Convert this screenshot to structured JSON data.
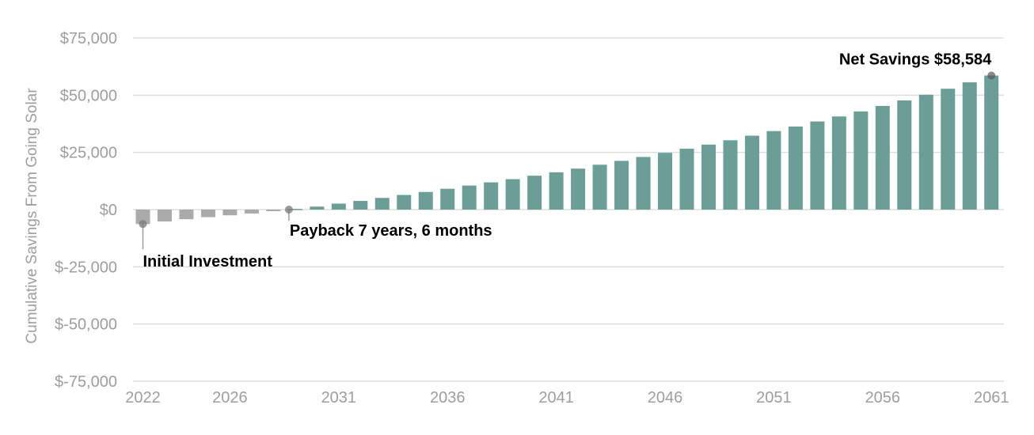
{
  "chart_data": {
    "type": "bar",
    "ylabel": "Cumulative Savings From Going Solar",
    "ylim": [
      -75000,
      75000
    ],
    "yticks": [
      {
        "value": 75000,
        "label": "$75,000"
      },
      {
        "value": 50000,
        "label": "$50,000"
      },
      {
        "value": 25000,
        "label": "$25,000"
      },
      {
        "value": 0,
        "label": "$0"
      },
      {
        "value": -25000,
        "label": "$-25,000"
      },
      {
        "value": -50000,
        "label": "$-50,000"
      },
      {
        "value": -75000,
        "label": "$-75,000"
      }
    ],
    "xticks": [
      "2022",
      "2026",
      "2031",
      "2036",
      "2041",
      "2046",
      "2051",
      "2056",
      "2061"
    ],
    "xtick_years": [
      2022,
      2026,
      2031,
      2036,
      2041,
      2046,
      2051,
      2056,
      2061
    ],
    "x": [
      2022,
      2023,
      2024,
      2025,
      2026,
      2027,
      2028,
      2029,
      2030,
      2031,
      2032,
      2033,
      2034,
      2035,
      2036,
      2037,
      2038,
      2039,
      2040,
      2041,
      2042,
      2043,
      2044,
      2045,
      2046,
      2047,
      2048,
      2049,
      2050,
      2051,
      2052,
      2053,
      2054,
      2055,
      2056,
      2057,
      2058,
      2059,
      2060,
      2061
    ],
    "values": [
      -6300,
      -5200,
      -4200,
      -3300,
      -2500,
      -1700,
      -700,
      300,
      1300,
      2600,
      3800,
      5100,
      6400,
      7700,
      9100,
      10500,
      11900,
      13300,
      14800,
      16300,
      17900,
      19600,
      21300,
      23000,
      24800,
      26600,
      28400,
      30300,
      32300,
      34300,
      36300,
      38500,
      40700,
      42900,
      45300,
      47700,
      50200,
      52800,
      55600,
      58584
    ],
    "negative_color": "#aaaaaa",
    "positive_color": "#6a9e96",
    "grid": true,
    "annotations": [
      {
        "text": "Initial Investment",
        "year": 2022,
        "value": -6300
      },
      {
        "text": "Payback 7 years, 6 months",
        "year": 2029,
        "value": 0
      },
      {
        "text": "Net Savings $58,584",
        "year": 2061,
        "value": 58584
      }
    ]
  }
}
